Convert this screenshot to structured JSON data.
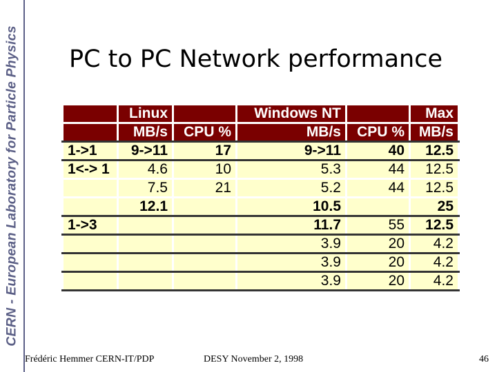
{
  "sidebar": {
    "text": "CERN - European Laboratory for Particle Physics"
  },
  "title": "PC to PC Network performance",
  "table": {
    "header1": [
      "",
      "Linux",
      "",
      "Windows NT",
      "",
      "Max"
    ],
    "header2": [
      "",
      "MB/s",
      "CPU %",
      "MB/s",
      "CPU %",
      "MB/s"
    ],
    "rows": [
      [
        "1->1",
        "9->11",
        "17",
        "9->11",
        "40",
        "12.5"
      ],
      [
        "1<-> 1",
        "4.6",
        "10",
        "5.3",
        "44",
        "12.5"
      ],
      [
        "",
        "7.5",
        "21",
        "5.2",
        "44",
        "12.5"
      ],
      [
        "",
        "12.1",
        "",
        "10.5",
        "",
        "25"
      ],
      [
        "1->3",
        "",
        "",
        "11.7",
        "55",
        "12.5"
      ],
      [
        "",
        "",
        "",
        "3.9",
        "20",
        "4.2"
      ],
      [
        "",
        "",
        "",
        "3.9",
        "20",
        "4.2"
      ],
      [
        "",
        "",
        "",
        "3.9",
        "20",
        "4.2"
      ]
    ]
  },
  "footer": {
    "author": "Frédéric Hemmer CERN-IT/PDP",
    "event": "DESY November 2, 1998",
    "page": "46"
  },
  "colors": {
    "header_bg": "#7a0000",
    "cell_bg": "#ffffcc",
    "sidebar_text": "#5b5f86"
  }
}
